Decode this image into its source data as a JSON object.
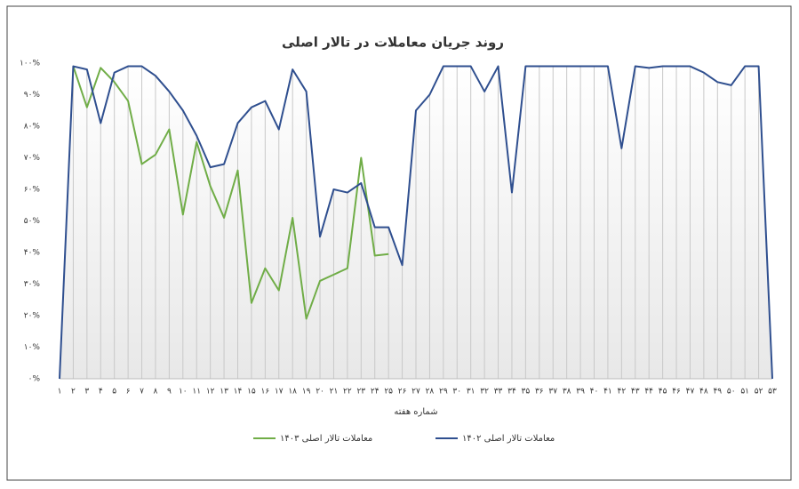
{
  "chart_data": {
    "type": "line",
    "title": "روند جریان معاملات در تالار اصلی",
    "x_label": "شماره هفته",
    "categories": [
      "۱",
      "۲",
      "۳",
      "۴",
      "۵",
      "۶",
      "۷",
      "۸",
      "۹",
      "۱۰",
      "۱۱",
      "۱۲",
      "۱۳",
      "۱۴",
      "۱۵",
      "۱۶",
      "۱۷",
      "۱۸",
      "۱۹",
      "۲۰",
      "۲۱",
      "۲۲",
      "۲۳",
      "۲۴",
      "۲۵",
      "۲۶",
      "۲۷",
      "۲۸",
      "۲۹",
      "۳۰",
      "۳۱",
      "۳۲",
      "۳۳",
      "۳۴",
      "۳۵",
      "۳۶",
      "۳۷",
      "۳۸",
      "۳۹",
      "۴۰",
      "۴۱",
      "۴۲",
      "۴۳",
      "۴۴",
      "۴۵",
      "۴۶",
      "۴۷",
      "۴۸",
      "۴۹",
      "۵۰",
      "۵۱",
      "۵۲",
      "۵۳"
    ],
    "series": [
      {
        "name": "معاملات تالار اصلی ۱۴۰۳",
        "color": "#70ad47",
        "values": [
          null,
          99,
          86,
          98.5,
          94,
          88,
          68,
          71,
          79,
          52,
          75,
          61,
          51,
          66,
          24,
          35,
          28,
          51,
          19,
          31,
          33,
          35,
          70,
          39,
          39.5,
          null,
          null,
          null,
          null,
          null,
          null,
          null,
          null,
          null,
          null,
          null,
          null,
          null,
          null,
          null,
          null,
          null,
          null,
          null,
          null,
          null,
          null,
          null,
          null,
          null,
          null,
          null,
          null
        ]
      },
      {
        "name": "معاملات تالار اصلی ۱۴۰۲",
        "color": "#2f4f8f",
        "values": [
          0,
          99,
          98,
          81,
          97,
          99,
          99,
          96,
          91,
          85,
          77,
          67,
          68,
          81,
          86,
          88,
          79,
          98,
          91,
          45,
          60,
          59,
          62,
          48,
          48,
          36,
          85,
          90,
          99,
          99,
          99,
          91,
          99,
          59,
          99,
          99,
          99,
          99,
          99,
          99,
          99,
          73,
          99,
          98.5,
          99,
          99,
          99,
          97,
          94,
          93,
          99,
          99,
          0
        ]
      }
    ],
    "ylim": [
      0,
      100
    ],
    "yticks": [
      {
        "value": 0,
        "label": "۰%"
      },
      {
        "value": 10,
        "label": "۱۰%"
      },
      {
        "value": 20,
        "label": "۲۰%"
      },
      {
        "value": 30,
        "label": "۳۰%"
      },
      {
        "value": 40,
        "label": "۴۰%"
      },
      {
        "value": 50,
        "label": "۵۰%"
      },
      {
        "value": 60,
        "label": "۶۰%"
      },
      {
        "value": 70,
        "label": "۷۰%"
      },
      {
        "value": 80,
        "label": "۸۰%"
      },
      {
        "value": 90,
        "label": "۹۰%"
      },
      {
        "value": 100,
        "label": "۱۰۰%"
      }
    ],
    "grid": false,
    "drop_lines": true,
    "area_fill": true,
    "legend": "bottom"
  }
}
